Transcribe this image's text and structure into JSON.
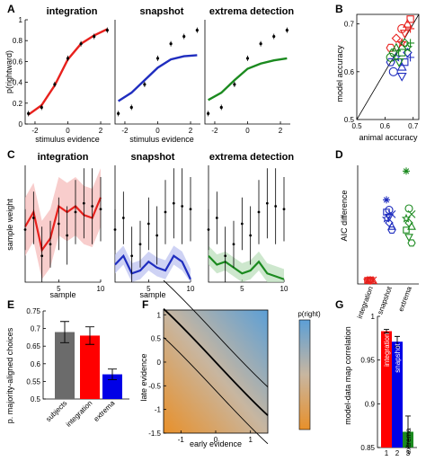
{
  "panel_labels": [
    "A",
    "B",
    "C",
    "D",
    "E",
    "F",
    "G"
  ],
  "chart_data": [
    {
      "id": "A",
      "type": "line",
      "titles": [
        "integration",
        "snapshot",
        "extrema detection"
      ],
      "xlabel": "stimulus evidence",
      "ylabel": "p(rightward)",
      "xlim": [
        -2.6,
        2.6
      ],
      "ylim": [
        0,
        1
      ],
      "xticks": [
        -2,
        0,
        2
      ],
      "yticks": [
        0,
        0.2,
        0.4,
        0.6,
        0.8,
        1
      ],
      "x": [
        -2.4,
        -1.6,
        -0.8,
        0,
        0.8,
        1.6,
        2.4
      ],
      "data": [
        0.1,
        0.16,
        0.38,
        0.63,
        0.77,
        0.84,
        0.9
      ],
      "series": [
        {
          "color": "#e8211d",
          "values": [
            0.09,
            0.18,
            0.37,
            0.62,
            0.77,
            0.85,
            0.91
          ]
        },
        {
          "color": "#1f2dbf",
          "values": [
            0.22,
            0.3,
            0.42,
            0.54,
            0.62,
            0.65,
            0.66
          ]
        },
        {
          "color": "#1b8a1f",
          "values": [
            0.23,
            0.3,
            0.42,
            0.53,
            0.58,
            0.61,
            0.63
          ]
        }
      ]
    },
    {
      "id": "B",
      "type": "scatter",
      "xlabel": "animal accuracy",
      "ylabel": "model accuracy",
      "xlim": [
        0.5,
        0.72
      ],
      "ylim": [
        0.5,
        0.72
      ],
      "xticks": [
        0.5,
        0.6,
        0.7
      ],
      "yticks": [
        0.5,
        0.6,
        0.7
      ],
      "series": [
        {
          "color": "#e8211d",
          "points": [
            [
              0.66,
              0.69
            ],
            [
              0.68,
              0.7
            ],
            [
              0.69,
              0.71
            ],
            [
              0.64,
              0.67
            ],
            [
              0.66,
              0.66
            ],
            [
              0.67,
              0.68
            ],
            [
              0.69,
              0.69
            ],
            [
              0.62,
              0.65
            ]
          ]
        },
        {
          "color": "#1f2dbf",
          "points": [
            [
              0.63,
              0.6
            ],
            [
              0.66,
              0.61
            ],
            [
              0.67,
              0.62
            ],
            [
              0.68,
              0.64
            ],
            [
              0.64,
              0.63
            ],
            [
              0.66,
              0.59
            ],
            [
              0.69,
              0.63
            ],
            [
              0.62,
              0.62
            ]
          ]
        },
        {
          "color": "#1b8a1f",
          "points": [
            [
              0.62,
              0.63
            ],
            [
              0.64,
              0.65
            ],
            [
              0.66,
              0.64
            ],
            [
              0.67,
              0.66
            ],
            [
              0.68,
              0.65
            ],
            [
              0.65,
              0.62
            ],
            [
              0.69,
              0.66
            ],
            [
              0.63,
              0.64
            ]
          ]
        }
      ]
    },
    {
      "id": "C",
      "type": "line",
      "titles": [
        "integration",
        "snapshot",
        "extrema detection"
      ],
      "xlabel": "sample",
      "ylabel": "sample weight",
      "xlim": [
        1,
        10
      ],
      "ylim": [
        0,
        4
      ],
      "xticks": [
        5,
        10
      ],
      "x": [
        1,
        2,
        3,
        4,
        5,
        6,
        7,
        8,
        9,
        10
      ],
      "data": [
        1.8,
        2.2,
        0.9,
        1.3,
        2.0,
        1.6,
        2.4,
        2.7,
        2.6,
        2.5
      ],
      "series": [
        {
          "color": "#e8211d",
          "values": [
            1.9,
            2.4,
            1.1,
            1.5,
            2.6,
            2.4,
            2.6,
            2.3,
            2.2,
            2.9
          ]
        },
        {
          "color": "#1f2dbf",
          "values": [
            0.6,
            0.9,
            0.3,
            0.4,
            0.7,
            0.5,
            0.4,
            0.9,
            0.7,
            0.1
          ]
        },
        {
          "color": "#1b8a1f",
          "values": [
            0.9,
            0.6,
            0.7,
            0.5,
            0.3,
            0.4,
            0.7,
            0.3,
            0.2,
            0.1
          ]
        }
      ]
    },
    {
      "id": "D",
      "type": "scatter",
      "ylabel": "AIC difference",
      "categories": [
        "integration",
        "snapshot",
        "extrema"
      ],
      "ylim": [
        -5,
        160
      ],
      "series": [
        {
          "color": "#e8211d",
          "values": [
            0,
            0,
            0,
            0,
            0,
            0,
            0,
            0
          ]
        },
        {
          "color": "#1f2dbf",
          "values": [
            112,
            98,
            92,
            86,
            80,
            75,
            95,
            88,
            70
          ]
        },
        {
          "color": "#1b8a1f",
          "values": [
            152,
            100,
            92,
            86,
            80,
            75,
            70,
            60,
            52
          ]
        }
      ]
    },
    {
      "id": "E",
      "type": "bar",
      "ylabel": "p. majority-aligned choices",
      "categories": [
        "subjects",
        "integration",
        "extrema"
      ],
      "values": [
        0.69,
        0.68,
        0.57
      ],
      "errors": [
        0.03,
        0.025,
        0.015
      ],
      "colors": [
        "#6b6b6b",
        "#ff0000",
        "#0000e6"
      ],
      "ylim": [
        0.5,
        0.75
      ],
      "yticks": [
        0.5,
        0.55,
        0.6,
        0.65,
        0.7,
        0.75
      ]
    },
    {
      "id": "F",
      "type": "heatmap",
      "xlabel": "early evidence",
      "ylabel": "late evidence",
      "colorbar_label": "p(right)",
      "xlim": [
        -1.5,
        1.5
      ],
      "ylim": [
        -1.5,
        1.1
      ],
      "xticks": [
        -1,
        0,
        1
      ],
      "yticks": [
        -1.5,
        -1,
        -0.5,
        0,
        0.5,
        1
      ],
      "colors": {
        "low": "#e8902a",
        "high": "#5c9fd6"
      }
    },
    {
      "id": "G",
      "type": "bar",
      "ylabel": "model-data map correlation",
      "categories": [
        "1",
        "2",
        "3"
      ],
      "bar_labels": [
        "integration",
        "snapshot",
        "extrema"
      ],
      "values": [
        0.983,
        0.971,
        0.868
      ],
      "errors": [
        0.002,
        0.006,
        0.018
      ],
      "colors": [
        "#ff0000",
        "#0000e6",
        "#1b8a1f"
      ],
      "ylim": [
        0.85,
        1
      ],
      "yticks": [
        0.85,
        0.9,
        0.95,
        1
      ]
    }
  ]
}
